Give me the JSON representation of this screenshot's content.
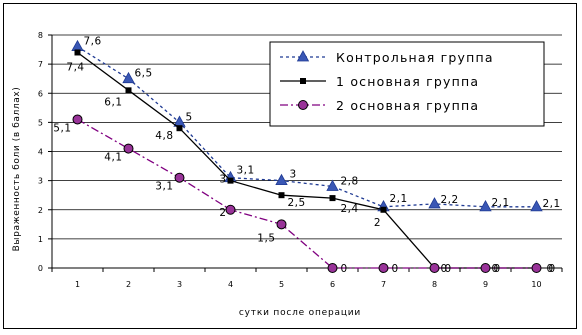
{
  "chart_data": {
    "type": "line",
    "title": "",
    "xlabel": "сутки после операции",
    "ylabel": "Выраженность боли (в баллах)",
    "categories": [
      "1",
      "2",
      "3",
      "4",
      "5",
      "6",
      "7",
      "8",
      "9",
      "10"
    ],
    "ylim": [
      0,
      8
    ],
    "yticks": [
      "0",
      "1",
      "2",
      "3",
      "4",
      "5",
      "6",
      "7",
      "8"
    ],
    "grid": "horizontal",
    "legend_position": "top-right",
    "series": [
      {
        "name": "Контрольная группа",
        "values": [
          7.6,
          6.5,
          5,
          3.1,
          3,
          2.8,
          2.1,
          2.2,
          2.1,
          2.1
        ],
        "labels": [
          "7,6",
          "6,5",
          "5",
          "3,1",
          "3",
          "2,8",
          "2,1",
          "2,2",
          "2,1",
          "2,1"
        ],
        "color": "#1f3a93",
        "marker": "triangle",
        "dash": "dotted"
      },
      {
        "name": "1 основная группа",
        "values": [
          7.4,
          6.1,
          4.8,
          3,
          2.5,
          2.4,
          2,
          0,
          0,
          0
        ],
        "labels": [
          "7,4",
          "6,1",
          "4,8",
          "3",
          "2,5",
          "2,4",
          "2",
          "0",
          "0",
          "0"
        ],
        "color": "#000000",
        "marker": "square",
        "dash": "solid"
      },
      {
        "name": "2 основная группа",
        "values": [
          5.1,
          4.1,
          3.1,
          2,
          1.5,
          0,
          0,
          0,
          0,
          0
        ],
        "labels": [
          "5,1",
          "4,1",
          "3,1",
          "2",
          "1,5",
          "0",
          "0",
          "0",
          "0",
          "0"
        ],
        "color": "#800080",
        "marker": "circle",
        "dash": "dashdot"
      }
    ]
  }
}
